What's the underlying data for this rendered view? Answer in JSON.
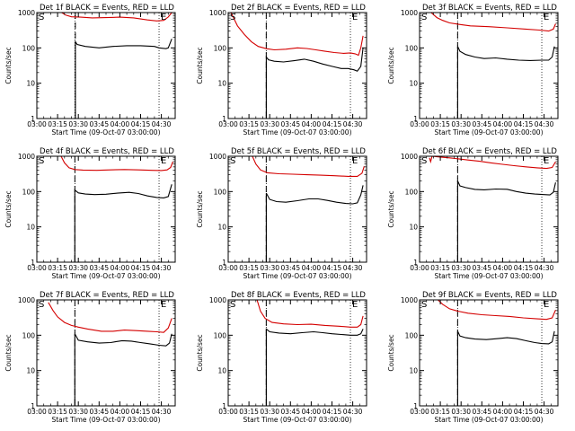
{
  "chart_data": {
    "layout": "3x3 grid",
    "ylim": [
      1,
      1000
    ],
    "yscale": "log",
    "x_range_sec": [
      0,
      6000
    ],
    "common": {
      "xlabel": "Start Time (09-Oct-07 03:00:00)",
      "ylabel": "Counts/sec",
      "xticks": [
        "03:00",
        "03:15",
        "03:30",
        "03:45",
        "04:00",
        "04:15",
        "04:30"
      ],
      "yticks": [
        "1",
        "10",
        "100",
        "1000"
      ],
      "start_marker": "S",
      "end_marker": "E",
      "series_colors": {
        "events": "#000000",
        "lld": "#d40000"
      }
    },
    "panels": [
      {
        "title": "Det 1f BLACK = Events, RED = LLD",
        "start_marker_t": 1650,
        "end_marker_t": 5300,
        "data_start_t": 1670,
        "events": [
          [
            1670,
            150
          ],
          [
            1750,
            125
          ],
          [
            2100,
            110
          ],
          [
            2700,
            100
          ],
          [
            3300,
            110
          ],
          [
            3900,
            115
          ],
          [
            4500,
            115
          ],
          [
            5100,
            110
          ],
          [
            5300,
            100
          ],
          [
            5600,
            95
          ],
          [
            5700,
            100
          ],
          [
            5850,
            180
          ]
        ],
        "lld": [
          [
            1080,
            1000
          ],
          [
            1250,
            850
          ],
          [
            1500,
            760
          ],
          [
            1900,
            740
          ],
          [
            2400,
            710
          ],
          [
            3000,
            720
          ],
          [
            3600,
            740
          ],
          [
            4200,
            710
          ],
          [
            4800,
            620
          ],
          [
            5200,
            580
          ],
          [
            5500,
            600
          ],
          [
            5700,
            750
          ],
          [
            5850,
            1000
          ]
        ]
      },
      {
        "title": "Det 2f BLACK = Events, RED = LLD",
        "start_marker_t": 1650,
        "end_marker_t": 5300,
        "data_start_t": 1650,
        "events": [
          [
            1650,
            55
          ],
          [
            1750,
            46
          ],
          [
            2000,
            42
          ],
          [
            2400,
            40
          ],
          [
            2900,
            44
          ],
          [
            3300,
            48
          ],
          [
            3700,
            42
          ],
          [
            4100,
            35
          ],
          [
            4500,
            30
          ],
          [
            4900,
            26
          ],
          [
            5200,
            26
          ],
          [
            5450,
            24
          ],
          [
            5600,
            22
          ],
          [
            5750,
            30
          ],
          [
            5850,
            100
          ]
        ],
        "lld": [
          [
            120,
            1000
          ],
          [
            400,
            420
          ],
          [
            700,
            240
          ],
          [
            1000,
            150
          ],
          [
            1300,
            110
          ],
          [
            1650,
            95
          ],
          [
            2000,
            88
          ],
          [
            2500,
            92
          ],
          [
            3000,
            100
          ],
          [
            3400,
            96
          ],
          [
            3800,
            88
          ],
          [
            4200,
            80
          ],
          [
            4600,
            74
          ],
          [
            5000,
            70
          ],
          [
            5300,
            72
          ],
          [
            5500,
            68
          ],
          [
            5650,
            62
          ],
          [
            5750,
            100
          ],
          [
            5850,
            220
          ]
        ]
      },
      {
        "title": "Det 3f BLACK = Events, RED = LLD",
        "start_marker_t": 1650,
        "end_marker_t": 5300,
        "data_start_t": 1650,
        "events": [
          [
            1650,
            110
          ],
          [
            1750,
            80
          ],
          [
            2000,
            65
          ],
          [
            2400,
            55
          ],
          [
            2800,
            50
          ],
          [
            3300,
            52
          ],
          [
            3800,
            48
          ],
          [
            4300,
            45
          ],
          [
            4800,
            44
          ],
          [
            5300,
            45
          ],
          [
            5600,
            45
          ],
          [
            5750,
            55
          ],
          [
            5850,
            110
          ]
        ],
        "lld": [
          [
            500,
            1000
          ],
          [
            750,
            720
          ],
          [
            1000,
            600
          ],
          [
            1300,
            510
          ],
          [
            1650,
            470
          ],
          [
            2200,
            420
          ],
          [
            3000,
            400
          ],
          [
            3800,
            370
          ],
          [
            4600,
            340
          ],
          [
            5200,
            320
          ],
          [
            5600,
            300
          ],
          [
            5800,
            340
          ],
          [
            5900,
            480
          ]
        ]
      },
      {
        "title": "Det 4f BLACK = Events, RED = LLD",
        "start_marker_t": 1650,
        "end_marker_t": 5300,
        "data_start_t": 1650,
        "events": [
          [
            1650,
            110
          ],
          [
            1800,
            92
          ],
          [
            2100,
            85
          ],
          [
            2500,
            82
          ],
          [
            3000,
            84
          ],
          [
            3500,
            90
          ],
          [
            4000,
            95
          ],
          [
            4400,
            88
          ],
          [
            4800,
            75
          ],
          [
            5200,
            68
          ],
          [
            5500,
            66
          ],
          [
            5700,
            72
          ],
          [
            5850,
            160
          ]
        ],
        "lld": [
          [
            1050,
            1000
          ],
          [
            1200,
            650
          ],
          [
            1400,
            470
          ],
          [
            1650,
            420
          ],
          [
            2000,
            405
          ],
          [
            2600,
            400
          ],
          [
            3200,
            410
          ],
          [
            3800,
            420
          ],
          [
            4400,
            410
          ],
          [
            5000,
            400
          ],
          [
            5400,
            395
          ],
          [
            5650,
            410
          ],
          [
            5800,
            480
          ],
          [
            5900,
            700
          ]
        ]
      },
      {
        "title": "Det 5f BLACK = Events, RED = LLD",
        "start_marker_t": 1650,
        "end_marker_t": 5300,
        "data_start_t": 1650,
        "events": [
          [
            1650,
            90
          ],
          [
            1800,
            60
          ],
          [
            2100,
            52
          ],
          [
            2500,
            50
          ],
          [
            3000,
            55
          ],
          [
            3500,
            62
          ],
          [
            3900,
            62
          ],
          [
            4300,
            56
          ],
          [
            4700,
            50
          ],
          [
            5100,
            46
          ],
          [
            5400,
            45
          ],
          [
            5600,
            48
          ],
          [
            5750,
            80
          ],
          [
            5850,
            150
          ]
        ],
        "lld": [
          [
            1050,
            1000
          ],
          [
            1200,
            600
          ],
          [
            1400,
            410
          ],
          [
            1700,
            340
          ],
          [
            2200,
            320
          ],
          [
            2800,
            310
          ],
          [
            3400,
            300
          ],
          [
            4000,
            290
          ],
          [
            4600,
            280
          ],
          [
            5200,
            270
          ],
          [
            5600,
            270
          ],
          [
            5800,
            330
          ],
          [
            5900,
            520
          ]
        ]
      },
      {
        "title": "Det 6f BLACK = Events, RED = LLD",
        "start_marker_t": 1650,
        "end_marker_t": 5300,
        "data_start_t": 1650,
        "events": [
          [
            1650,
            200
          ],
          [
            1750,
            145
          ],
          [
            2000,
            130
          ],
          [
            2400,
            115
          ],
          [
            2800,
            112
          ],
          [
            3300,
            118
          ],
          [
            3800,
            116
          ],
          [
            4200,
            100
          ],
          [
            4600,
            90
          ],
          [
            5000,
            85
          ],
          [
            5400,
            82
          ],
          [
            5650,
            80
          ],
          [
            5800,
            95
          ],
          [
            5900,
            180
          ]
        ],
        "lld": [
          [
            430,
            900
          ],
          [
            480,
            700
          ],
          [
            540,
            1000
          ],
          [
            900,
            950
          ],
          [
            1300,
            900
          ],
          [
            1650,
            850
          ],
          [
            2100,
            780
          ],
          [
            2600,
            720
          ],
          [
            3100,
            650
          ],
          [
            3600,
            590
          ],
          [
            4100,
            540
          ],
          [
            4600,
            500
          ],
          [
            5100,
            470
          ],
          [
            5500,
            450
          ],
          [
            5750,
            480
          ],
          [
            5900,
            700
          ]
        ]
      },
      {
        "title": "Det 7f BLACK = Events, RED = LLD",
        "start_marker_t": 1650,
        "end_marker_t": 5300,
        "data_start_t": 1650,
        "events": [
          [
            1650,
            110
          ],
          [
            1800,
            72
          ],
          [
            2200,
            65
          ],
          [
            2700,
            60
          ],
          [
            3200,
            62
          ],
          [
            3700,
            70
          ],
          [
            4100,
            68
          ],
          [
            4500,
            62
          ],
          [
            4900,
            57
          ],
          [
            5300,
            52
          ],
          [
            5600,
            50
          ],
          [
            5750,
            60
          ],
          [
            5850,
            110
          ]
        ],
        "lld": [
          [
            500,
            850
          ],
          [
            700,
            500
          ],
          [
            900,
            330
          ],
          [
            1200,
            230
          ],
          [
            1500,
            190
          ],
          [
            1800,
            170
          ],
          [
            2200,
            150
          ],
          [
            2800,
            130
          ],
          [
            3300,
            130
          ],
          [
            3800,
            140
          ],
          [
            4300,
            135
          ],
          [
            4800,
            130
          ],
          [
            5200,
            125
          ],
          [
            5500,
            120
          ],
          [
            5700,
            160
          ],
          [
            5850,
            300
          ]
        ]
      },
      {
        "title": "Det 8f BLACK = Events, RED = LLD",
        "start_marker_t": 1650,
        "end_marker_t": 5300,
        "data_start_t": 1650,
        "events": [
          [
            1650,
            150
          ],
          [
            1800,
            125
          ],
          [
            2200,
            115
          ],
          [
            2700,
            110
          ],
          [
            3200,
            118
          ],
          [
            3700,
            125
          ],
          [
            4100,
            118
          ],
          [
            4500,
            110
          ],
          [
            4900,
            105
          ],
          [
            5300,
            100
          ],
          [
            5600,
            100
          ],
          [
            5750,
            110
          ],
          [
            5850,
            150
          ]
        ],
        "lld": [
          [
            1250,
            1000
          ],
          [
            1400,
            480
          ],
          [
            1600,
            300
          ],
          [
            1900,
            230
          ],
          [
            2400,
            210
          ],
          [
            3000,
            200
          ],
          [
            3600,
            205
          ],
          [
            4200,
            190
          ],
          [
            4800,
            180
          ],
          [
            5300,
            170
          ],
          [
            5600,
            170
          ],
          [
            5750,
            200
          ],
          [
            5850,
            350
          ]
        ]
      },
      {
        "title": "Det 9f BLACK = Events, RED = LLD",
        "start_marker_t": 1650,
        "end_marker_t": 5300,
        "data_start_t": 1650,
        "events": [
          [
            1650,
            130
          ],
          [
            1750,
            95
          ],
          [
            2000,
            85
          ],
          [
            2400,
            78
          ],
          [
            2900,
            75
          ],
          [
            3400,
            80
          ],
          [
            3800,
            85
          ],
          [
            4200,
            80
          ],
          [
            4600,
            70
          ],
          [
            5000,
            62
          ],
          [
            5300,
            58
          ],
          [
            5600,
            57
          ],
          [
            5750,
            65
          ],
          [
            5850,
            130
          ]
        ],
        "lld": [
          [
            800,
            1000
          ],
          [
            1000,
            750
          ],
          [
            1300,
            560
          ],
          [
            1650,
            480
          ],
          [
            2100,
            420
          ],
          [
            2700,
            380
          ],
          [
            3300,
            360
          ],
          [
            3900,
            340
          ],
          [
            4500,
            310
          ],
          [
            5100,
            290
          ],
          [
            5500,
            280
          ],
          [
            5750,
            310
          ],
          [
            5900,
            520
          ]
        ]
      }
    ]
  }
}
